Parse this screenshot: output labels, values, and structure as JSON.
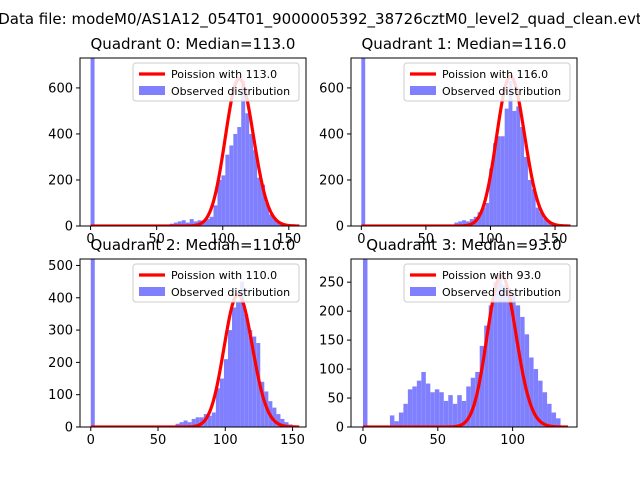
{
  "suptitle": "Data file: modeM0/AS1A12_054T01_9000005392_38726cztM0_level2_quad_clean.evt",
  "chart_data": [
    {
      "type": "bar",
      "title": "Quadrant 0: Median=113.0",
      "xlim": [
        -8,
        163
      ],
      "ylim": [
        0,
        730
      ],
      "xticks": [
        0,
        50,
        100,
        150
      ],
      "yticks": [
        0,
        200,
        400,
        600
      ],
      "legend_position": "top-right",
      "series": [
        {
          "name": "Poission with 113.0",
          "kind": "line",
          "color": "#ff0000",
          "lambda": 113,
          "peak": 640,
          "x_range": [
            0,
            158
          ]
        },
        {
          "name": "Observed distribution",
          "kind": "histogram",
          "color": "#8080ff",
          "bin_width": 3,
          "bins": [
            [
              0,
              730
            ],
            [
              60,
              10
            ],
            [
              63,
              15
            ],
            [
              66,
              20
            ],
            [
              69,
              25
            ],
            [
              72,
              15
            ],
            [
              75,
              30
            ],
            [
              78,
              20
            ],
            [
              81,
              25
            ],
            [
              84,
              20
            ],
            [
              87,
              30
            ],
            [
              90,
              40
            ],
            [
              93,
              90
            ],
            [
              96,
              200
            ],
            [
              99,
              220
            ],
            [
              102,
              310
            ],
            [
              105,
              350
            ],
            [
              108,
              400
            ],
            [
              111,
              430
            ],
            [
              114,
              630
            ],
            [
              117,
              490
            ],
            [
              120,
              400
            ],
            [
              123,
              330
            ],
            [
              126,
              210
            ],
            [
              129,
              180
            ],
            [
              132,
              100
            ],
            [
              135,
              50
            ],
            [
              138,
              30
            ],
            [
              141,
              15
            ],
            [
              144,
              10
            ],
            [
              147,
              5
            ]
          ]
        }
      ]
    },
    {
      "type": "bar",
      "title": "Quadrant 1: Median=116.0",
      "xlim": [
        -8,
        167
      ],
      "ylim": [
        0,
        730
      ],
      "xticks": [
        0,
        50,
        100,
        150
      ],
      "yticks": [
        0,
        200,
        400,
        600
      ],
      "legend_position": "top-right",
      "series": [
        {
          "name": "Poission with 116.0",
          "kind": "line",
          "color": "#ff0000",
          "lambda": 116,
          "peak": 650,
          "x_range": [
            0,
            162
          ]
        },
        {
          "name": "Observed distribution",
          "kind": "histogram",
          "color": "#8080ff",
          "bin_width": 3,
          "bins": [
            [
              0,
              730
            ],
            [
              72,
              15
            ],
            [
              75,
              20
            ],
            [
              78,
              25
            ],
            [
              81,
              20
            ],
            [
              84,
              30
            ],
            [
              87,
              40
            ],
            [
              90,
              60
            ],
            [
              93,
              80
            ],
            [
              96,
              100
            ],
            [
              99,
              250
            ],
            [
              102,
              360
            ],
            [
              105,
              390
            ],
            [
              108,
              390
            ],
            [
              111,
              510
            ],
            [
              114,
              630
            ],
            [
              117,
              500
            ],
            [
              120,
              520
            ],
            [
              123,
              430
            ],
            [
              126,
              300
            ],
            [
              129,
              200
            ],
            [
              132,
              160
            ],
            [
              135,
              80
            ],
            [
              138,
              60
            ],
            [
              141,
              30
            ],
            [
              144,
              15
            ],
            [
              147,
              8
            ]
          ]
        }
      ]
    },
    {
      "type": "bar",
      "title": "Quadrant 2: Median=110.0",
      "xlim": [
        -8,
        160
      ],
      "ylim": [
        0,
        520
      ],
      "xticks": [
        0,
        50,
        100,
        150
      ],
      "yticks": [
        0,
        100,
        200,
        300,
        400,
        500
      ],
      "legend_position": "top-right",
      "series": [
        {
          "name": "Poission with 110.0",
          "kind": "line",
          "color": "#ff0000",
          "lambda": 110,
          "peak": 410,
          "x_range": [
            0,
            155
          ]
        },
        {
          "name": "Observed distribution",
          "kind": "histogram",
          "color": "#8080ff",
          "bin_width": 3,
          "bins": [
            [
              0,
              520
            ],
            [
              63,
              10
            ],
            [
              66,
              15
            ],
            [
              69,
              20
            ],
            [
              72,
              15
            ],
            [
              75,
              25
            ],
            [
              78,
              30
            ],
            [
              81,
              30
            ],
            [
              84,
              40
            ],
            [
              87,
              35
            ],
            [
              90,
              45
            ],
            [
              93,
              120
            ],
            [
              96,
              150
            ],
            [
              99,
              210
            ],
            [
              102,
              300
            ],
            [
              105,
              370
            ],
            [
              108,
              390
            ],
            [
              111,
              450
            ],
            [
              114,
              350
            ],
            [
              117,
              300
            ],
            [
              120,
              280
            ],
            [
              123,
              260
            ],
            [
              126,
              140
            ],
            [
              129,
              110
            ],
            [
              132,
              80
            ],
            [
              135,
              60
            ],
            [
              138,
              40
            ],
            [
              141,
              25
            ],
            [
              144,
              15
            ],
            [
              147,
              8
            ]
          ]
        }
      ]
    },
    {
      "type": "bar",
      "title": "Quadrant 3: Median=93.0",
      "xlim": [
        -8,
        143
      ],
      "ylim": [
        0,
        290
      ],
      "xticks": [
        0,
        50,
        100
      ],
      "yticks": [
        0,
        50,
        100,
        150,
        200,
        250
      ],
      "legend_position": "top-right",
      "series": [
        {
          "name": "Poission with 93.0",
          "kind": "line",
          "color": "#ff0000",
          "lambda": 93,
          "peak": 262,
          "x_range": [
            0,
            137
          ]
        },
        {
          "name": "Observed distribution",
          "kind": "histogram",
          "color": "#8080ff",
          "bin_width": 3,
          "bins": [
            [
              0,
              290
            ],
            [
              18,
              20
            ],
            [
              21,
              10
            ],
            [
              24,
              25
            ],
            [
              27,
              40
            ],
            [
              30,
              65
            ],
            [
              33,
              70
            ],
            [
              36,
              80
            ],
            [
              39,
              95
            ],
            [
              42,
              75
            ],
            [
              45,
              60
            ],
            [
              48,
              65
            ],
            [
              51,
              60
            ],
            [
              54,
              45
            ],
            [
              57,
              55
            ],
            [
              60,
              40
            ],
            [
              63,
              55
            ],
            [
              66,
              45
            ],
            [
              69,
              70
            ],
            [
              72,
              85
            ],
            [
              75,
              95
            ],
            [
              78,
              140
            ],
            [
              81,
              175
            ],
            [
              84,
              210
            ],
            [
              87,
              250
            ],
            [
              90,
              260
            ],
            [
              93,
              245
            ],
            [
              96,
              240
            ],
            [
              99,
              230
            ],
            [
              102,
              210
            ],
            [
              105,
              190
            ],
            [
              108,
              160
            ],
            [
              111,
              120
            ],
            [
              114,
              100
            ],
            [
              117,
              80
            ],
            [
              120,
              60
            ],
            [
              123,
              40
            ],
            [
              126,
              25
            ],
            [
              129,
              15
            ]
          ]
        }
      ]
    }
  ]
}
